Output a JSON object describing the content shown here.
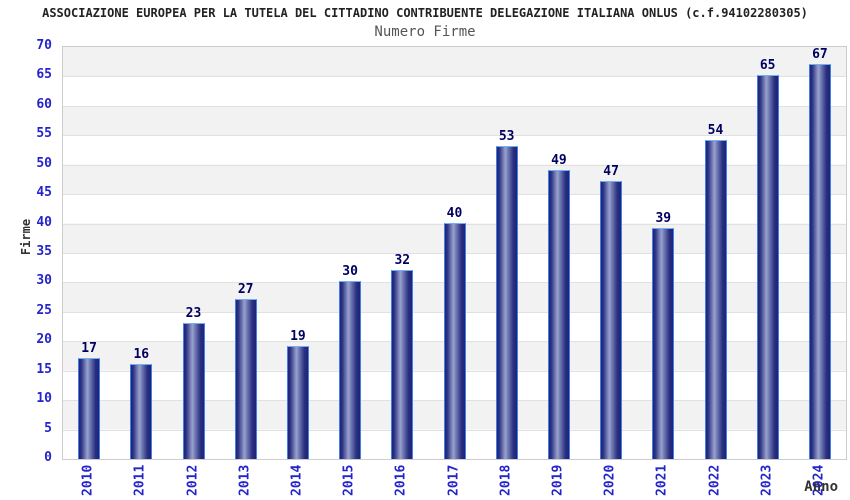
{
  "header": {
    "title": "ASSOCIAZIONE EUROPEA PER LA TUTELA DEL CITTADINO CONTRIBUENTE DELEGAZIONE ITALIANA ONLUS (c.f.94102280305)",
    "subtitle": "Numero Firme"
  },
  "chart_data": {
    "type": "bar",
    "title": "Numero Firme",
    "categories": [
      "2010",
      "2011",
      "2012",
      "2013",
      "2014",
      "2015",
      "2016",
      "2017",
      "2018",
      "2019",
      "2020",
      "2021",
      "2022",
      "2023",
      "2024"
    ],
    "values": [
      17,
      16,
      23,
      27,
      19,
      30,
      32,
      40,
      53,
      49,
      47,
      39,
      54,
      65,
      67
    ],
    "xlabel": "Anno",
    "ylabel": "Firme",
    "ylim": [
      0,
      70
    ],
    "ytick_step": 5,
    "grid": true,
    "legend": "none",
    "band_fill": "alternating horizontal bands"
  },
  "colors": {
    "title": "#222222",
    "subtitle": "#555555",
    "tick_label": "#2424cc",
    "value_label": "#000060",
    "bar_edge": "#1f2376",
    "bar_center": "#99a2ce",
    "bar_border": "#4080e8",
    "bar_border_top": "#6fb0f8",
    "band_gray": "#f2f2f2",
    "band_white": "#ffffff",
    "gridline": "#e1e1e1",
    "plot_border": "#cccccc",
    "axis_title": "#333333"
  }
}
